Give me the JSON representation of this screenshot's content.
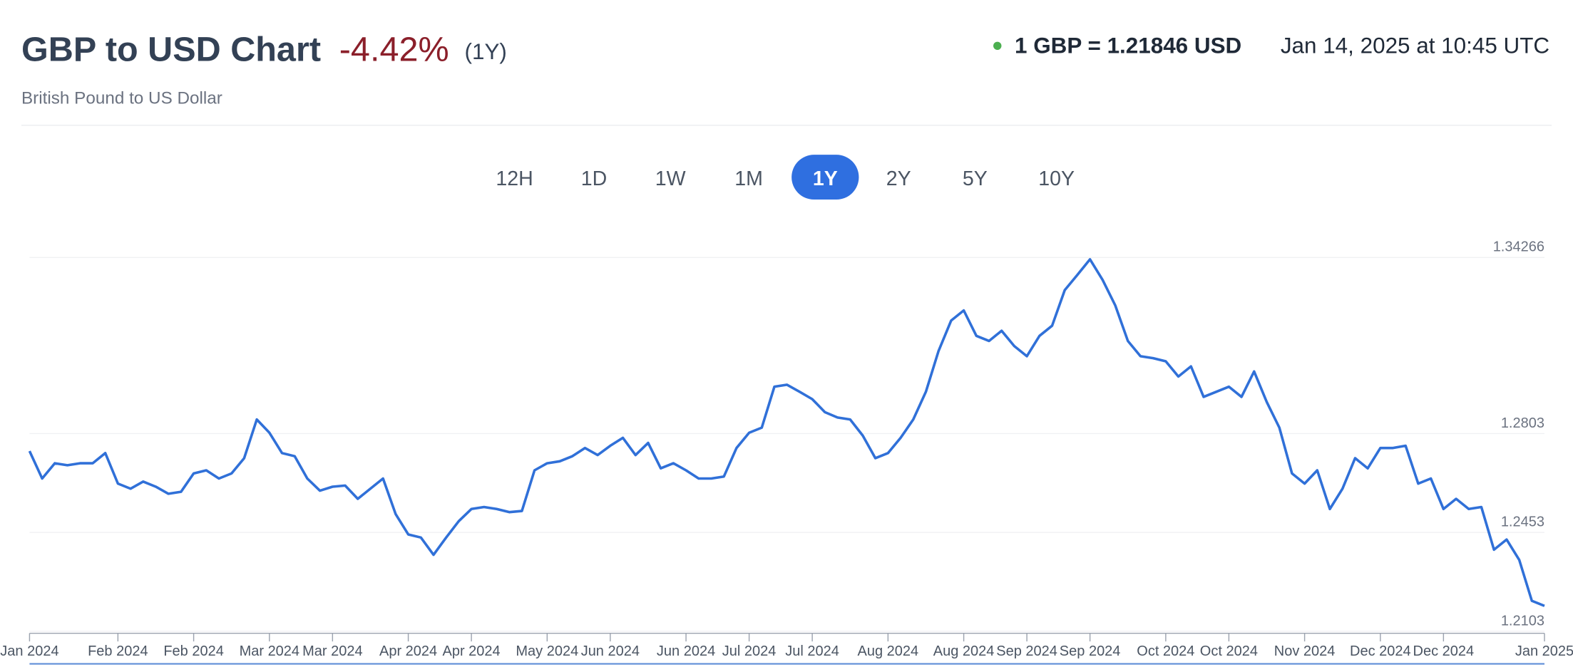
{
  "header": {
    "change": "-4.42%",
    "period": "(1Y)",
    "rate": "1 GBP = 1.21846 USD",
    "timestamp": "Jan 14, 2025 at 10:45 UTC",
    "buttons": [
      "12H",
      "1D",
      "1W",
      "1M",
      "1Y",
      "2Y",
      "5Y",
      "10Y"
    ],
    "active_button": 4
  },
  "chart_data": {
    "type": "line",
    "title": "GBP to USD Chart",
    "subtitle": "British Pound to US Dollar",
    "color": "#3070d8",
    "categories": [
      "Jan 2024",
      null,
      null,
      null,
      null,
      null,
      null,
      "Feb 2024",
      null,
      null,
      null,
      null,
      null,
      "Feb 2024",
      null,
      null,
      null,
      null,
      null,
      "Mar 2024",
      null,
      null,
      null,
      null,
      "Mar 2024",
      null,
      null,
      null,
      null,
      null,
      "Apr 2024",
      null,
      null,
      null,
      null,
      "Apr 2024",
      null,
      null,
      null,
      null,
      null,
      "May 2024",
      null,
      null,
      null,
      null,
      "Jun 2024",
      null,
      null,
      null,
      null,
      null,
      "Jun 2024",
      null,
      null,
      null,
      null,
      "Jul 2024",
      null,
      null,
      null,
      null,
      "Jul 2024",
      null,
      null,
      null,
      null,
      null,
      "Aug 2024",
      null,
      null,
      null,
      null,
      null,
      "Aug 2024",
      null,
      null,
      null,
      null,
      "Sep 2024",
      null,
      null,
      null,
      null,
      "Sep 2024",
      null,
      null,
      null,
      null,
      null,
      "Oct 2024",
      null,
      null,
      null,
      null,
      "Oct 2024",
      null,
      null,
      null,
      null,
      null,
      "Nov 2024",
      null,
      null,
      null,
      null,
      null,
      "Dec 2024",
      null,
      null,
      null,
      null,
      "Dec 2024",
      null,
      null,
      null,
      null,
      null,
      null,
      null,
      "Jan 2025"
    ],
    "values": [
      1.2741,
      1.2644,
      1.2698,
      1.2691,
      1.2698,
      1.2698,
      1.2734,
      1.2626,
      1.2608,
      1.2633,
      1.2615,
      1.259,
      1.2597,
      1.2662,
      1.2673,
      1.2644,
      1.2662,
      1.2716,
      1.2853,
      1.2806,
      1.2734,
      1.2723,
      1.2644,
      1.2601,
      1.2615,
      1.2619,
      1.2572,
      1.2608,
      1.2644,
      1.2518,
      1.2446,
      1.2435,
      1.2374,
      1.2435,
      1.2493,
      1.2536,
      1.2543,
      1.2536,
      1.2525,
      1.2529,
      1.2673,
      1.2698,
      1.2705,
      1.2723,
      1.2752,
      1.2727,
      1.276,
      1.2788,
      1.2727,
      1.277,
      1.268,
      1.2698,
      1.2673,
      1.2644,
      1.2644,
      1.2651,
      1.2752,
      1.2806,
      1.2824,
      1.2969,
      1.2976,
      1.2951,
      1.2925,
      1.2879,
      1.286,
      1.2853,
      1.2796,
      1.2716,
      1.2734,
      1.2788,
      1.2853,
      1.2951,
      1.3095,
      1.3203,
      1.3239,
      1.3149,
      1.3131,
      1.3167,
      1.3113,
      1.3077,
      1.3149,
      1.3185,
      1.3311,
      1.3365,
      1.342,
      1.3347,
      1.3257,
      1.3131,
      1.3077,
      1.307,
      1.3059,
      1.3005,
      1.3041,
      1.2933,
      1.2951,
      1.2969,
      1.2933,
      1.3023,
      1.2915,
      1.2824,
      1.2662,
      1.2626,
      1.2673,
      1.2536,
      1.2608,
      1.2716,
      1.268,
      1.2752,
      1.2752,
      1.276,
      1.2626,
      1.2644,
      1.2536,
      1.2572,
      1.2536,
      1.2543,
      1.2392,
      1.2428,
      1.2356,
      1.2211,
      1.2193
    ],
    "ylim": [
      1.2096,
      1.3509
    ],
    "yticks": [
      1.34266,
      1.2803,
      1.2453,
      1.2103
    ],
    "grid": true
  }
}
